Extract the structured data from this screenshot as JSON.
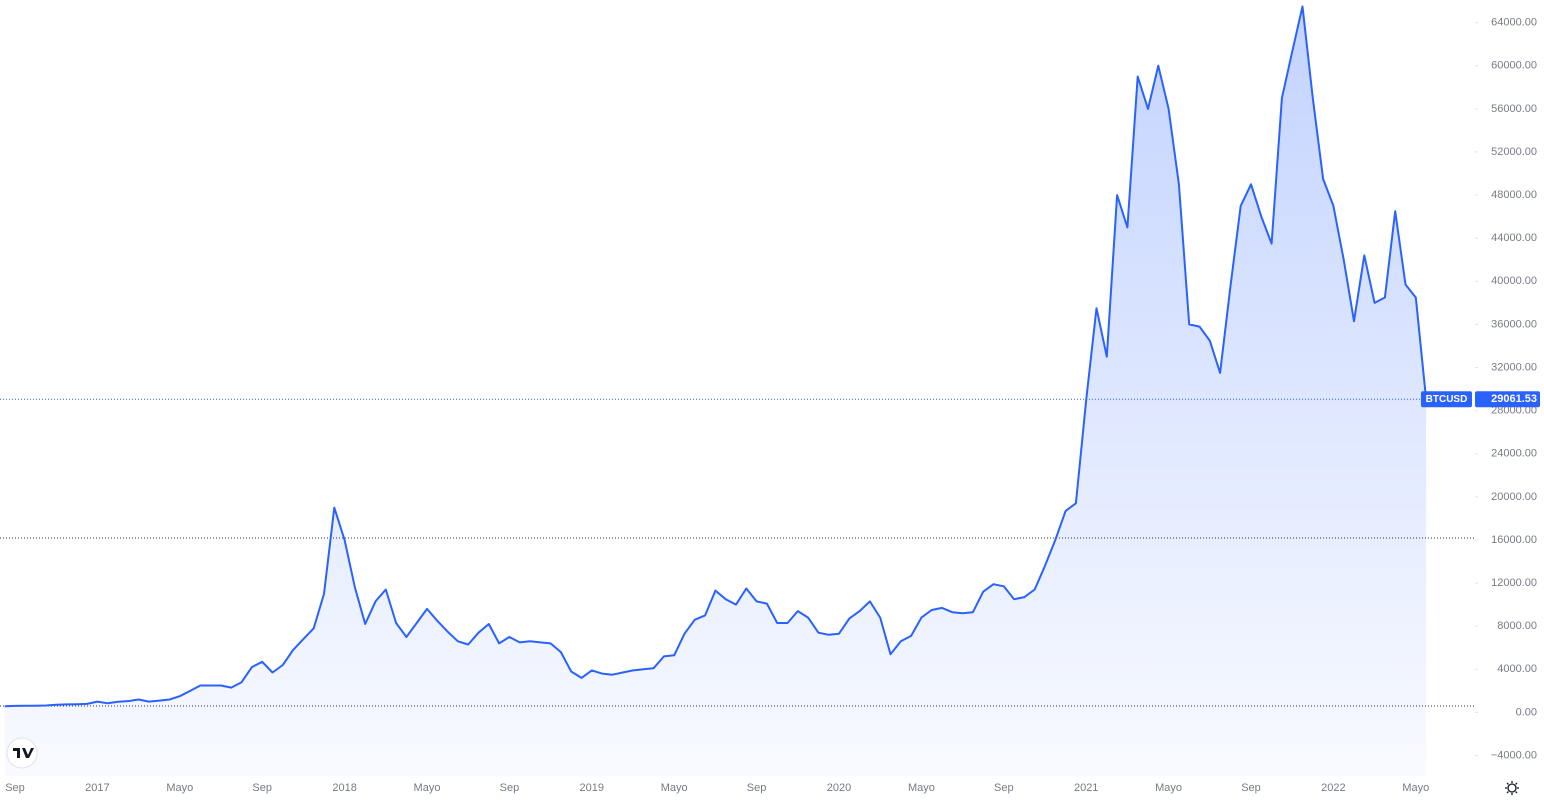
{
  "chart_data": {
    "type": "area",
    "categories": [
      null,
      "Sep",
      null,
      null,
      null,
      null,
      null,
      null,
      null,
      "2017",
      null,
      null,
      null,
      null,
      null,
      null,
      null,
      "Mayo",
      null,
      null,
      null,
      null,
      null,
      null,
      null,
      "Sep",
      null,
      null,
      null,
      null,
      null,
      null,
      null,
      "2018",
      null,
      null,
      null,
      null,
      null,
      null,
      null,
      "Mayo",
      null,
      null,
      null,
      null,
      null,
      null,
      null,
      "Sep",
      null,
      null,
      null,
      null,
      null,
      null,
      null,
      "2019",
      null,
      null,
      null,
      null,
      null,
      null,
      null,
      "Mayo",
      null,
      null,
      null,
      null,
      null,
      null,
      null,
      "Sep",
      null,
      null,
      null,
      null,
      null,
      null,
      null,
      "2020",
      null,
      null,
      null,
      null,
      null,
      null,
      null,
      "Mayo",
      null,
      null,
      null,
      null,
      null,
      null,
      null,
      "Sep",
      null,
      null,
      null,
      null,
      null,
      null,
      null,
      "2021",
      null,
      null,
      null,
      null,
      null,
      null,
      null,
      "Mayo",
      null,
      null,
      null,
      null,
      null,
      null,
      null,
      "Sep",
      null,
      null,
      null,
      null,
      null,
      null,
      null,
      "2022",
      null,
      null,
      null,
      null,
      null,
      null,
      null,
      "Mayo",
      null
    ],
    "series": [
      {
        "name": "BTCUSD",
        "color": "#2962ff",
        "values": [
          580,
          600,
          610,
          620,
          640,
          720,
          740,
          760,
          790,
          1000,
          850,
          980,
          1050,
          1200,
          1000,
          1100,
          1200,
          1500,
          2000,
          2500,
          2500,
          2500,
          2300,
          2800,
          4200,
          4700,
          3700,
          4400,
          5800,
          6800,
          7800,
          11000,
          19000,
          16000,
          11600,
          8200,
          10300,
          11400,
          8300,
          7000,
          8300,
          9600,
          8500,
          7500,
          6600,
          6300,
          7400,
          8200,
          6400,
          7000,
          6500,
          6600,
          6500,
          6400,
          5600,
          3800,
          3200,
          3900,
          3600,
          3500,
          3700,
          3900,
          4000,
          4100,
          5200,
          5300,
          7300,
          8600,
          9000,
          11300,
          10500,
          10000,
          11500,
          10300,
          10100,
          8300,
          8300,
          9400,
          8800,
          7400,
          7200,
          7300,
          8700,
          9400,
          10300,
          8800,
          5400,
          6600,
          7100,
          8800,
          9500,
          9700,
          9300,
          9200,
          9300,
          11200,
          11900,
          11700,
          10500,
          10700,
          11400,
          13600,
          16000,
          18700,
          19400,
          29000,
          37500,
          33000,
          48000,
          45000,
          59000,
          56000,
          60000,
          56000,
          49000,
          36000,
          35800,
          34500,
          31500,
          39500,
          47000,
          49000,
          46000,
          43500,
          57000,
          61300,
          65500,
          57000,
          49500,
          47000,
          42000,
          36300,
          42400,
          38000,
          38500,
          46500,
          39700,
          38500,
          29061.53
        ]
      }
    ],
    "ylim": [
      -5900,
      66100
    ],
    "yticks": [
      {
        "value": -4000,
        "label": "−4000.00"
      },
      {
        "value": 0,
        "label": "0.00"
      },
      {
        "value": 4000,
        "label": "4000.00"
      },
      {
        "value": 8000,
        "label": "8000.00"
      },
      {
        "value": 12000,
        "label": "12000.00"
      },
      {
        "value": 16000,
        "label": "16000.00"
      },
      {
        "value": 20000,
        "label": "20000.00"
      },
      {
        "value": 24000,
        "label": "24000.00"
      },
      {
        "value": 28000,
        "label": "28000.00"
      },
      {
        "value": 32000,
        "label": "32000.00"
      },
      {
        "value": 36000,
        "label": "36000.00"
      },
      {
        "value": 40000,
        "label": "40000.00"
      },
      {
        "value": 44000,
        "label": "44000.00"
      },
      {
        "value": 48000,
        "label": "48000.00"
      },
      {
        "value": 52000,
        "label": "52000.00"
      },
      {
        "value": 56000,
        "label": "56000.00"
      },
      {
        "value": 60000,
        "label": "60000.00"
      },
      {
        "value": 64000,
        "label": "64000.00"
      }
    ],
    "grid": false
  }
}
